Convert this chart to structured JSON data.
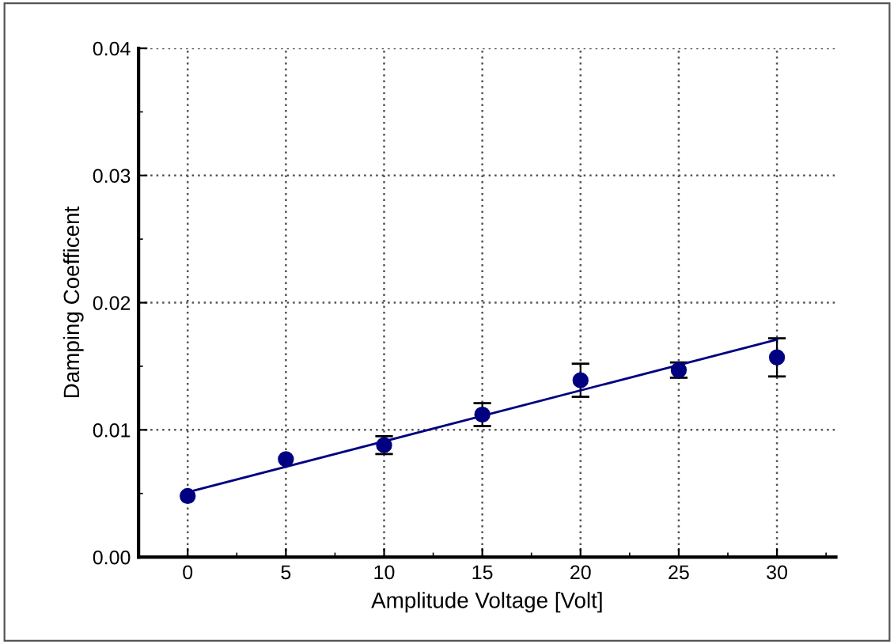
{
  "chart_data": {
    "type": "scatter",
    "xlabel": "Amplitude Voltage [Volt]",
    "ylabel": "Damping Coefficent",
    "x": [
      0,
      5,
      10,
      15,
      20,
      25,
      30
    ],
    "series": [
      {
        "color": "#000080",
        "values": [
          0.0048,
          0.0077,
          0.0088,
          0.0112,
          0.0139,
          0.0147,
          0.0157
        ],
        "errors": [
          null,
          null,
          [
            0.0081,
            0.0095
          ],
          0.0009,
          0.0013,
          0.0006,
          0.0015
        ],
        "marker": "circle"
      },
      {
        "type": "line",
        "color": "#000080",
        "x": [
          0,
          30
        ],
        "values": [
          0.0051,
          0.0171
        ],
        "marker": "none",
        "line_style": "solid"
      }
    ],
    "xlim": [
      -2.5,
      33
    ],
    "ylim": [
      0,
      0.04
    ],
    "xticks": [
      0,
      5,
      10,
      15,
      20,
      25,
      30
    ],
    "yticks": [
      {
        "value": 0,
        "label": "0.00"
      },
      {
        "value": 0.01,
        "label": "0.01"
      },
      {
        "value": 0.02,
        "label": "0.02"
      },
      {
        "value": 0.03,
        "label": "0.03"
      },
      {
        "value": 0.04,
        "label": "0.04"
      }
    ],
    "grid": true
  }
}
